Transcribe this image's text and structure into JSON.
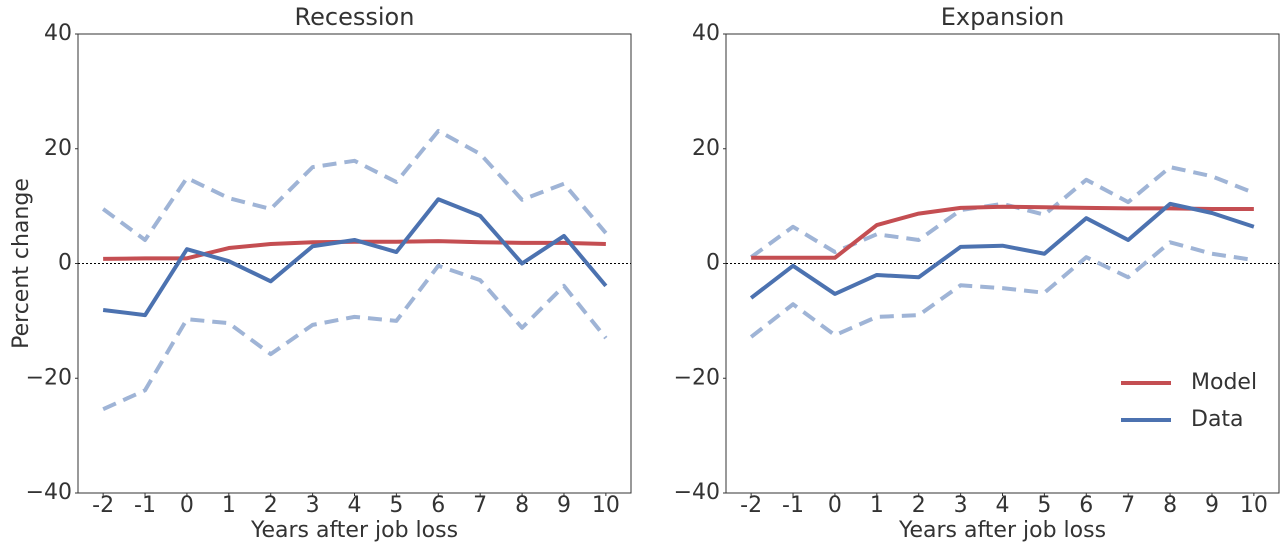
{
  "chart_data": [
    {
      "type": "line",
      "title": "Recession",
      "xlabel": "Years after job loss",
      "ylabel": "Percent change",
      "x": [
        -2,
        -1,
        0,
        1,
        2,
        3,
        4,
        5,
        6,
        7,
        8,
        9,
        10
      ],
      "xlim": [
        -2.6,
        10.6
      ],
      "xticks": [
        -2,
        -1,
        0,
        1,
        2,
        3,
        4,
        5,
        6,
        7,
        8,
        9,
        10
      ],
      "ylim": [
        -40,
        40
      ],
      "yticks": [
        {
          "value": -40,
          "label": "−40"
        },
        {
          "value": -20,
          "label": "−20"
        },
        0,
        20,
        40
      ],
      "zero_line": true,
      "series": [
        {
          "color": "#9fb4d6",
          "dashed": true,
          "values": [
            9.5,
            4.1,
            14.9,
            11.4,
            9.5,
            16.8,
            17.9,
            14.2,
            23.1,
            19.1,
            11.1,
            13.9,
            5.3
          ]
        },
        {
          "color": "#9fb4d6",
          "dashed": true,
          "values": [
            -25.4,
            -22.1,
            -9.7,
            -10.4,
            -15.8,
            -10.7,
            -9.3,
            -10,
            -0.4,
            -2.9,
            -11.2,
            -3.9,
            -13
          ]
        },
        {
          "color": "#c44e52",
          "values": [
            0.8,
            0.9,
            0.9,
            2.7,
            3.4,
            3.7,
            3.8,
            3.8,
            3.9,
            3.7,
            3.6,
            3.6,
            3.4
          ]
        },
        {
          "color": "#4c72b0",
          "values": [
            -8.1,
            -9,
            2.5,
            0.4,
            -3.1,
            3,
            4.1,
            2,
            11.2,
            8.3,
            0,
            4.8,
            -3.9
          ]
        }
      ]
    },
    {
      "type": "line",
      "title": "Expansion",
      "xlabel": "Years after job loss",
      "x": [
        -2,
        -1,
        0,
        1,
        2,
        3,
        4,
        5,
        6,
        7,
        8,
        9,
        10
      ],
      "xlim": [
        -2.6,
        10.6
      ],
      "xticks": [
        -2,
        -1,
        0,
        1,
        2,
        3,
        4,
        5,
        6,
        7,
        8,
        9,
        10
      ],
      "ylim": [
        -40,
        40
      ],
      "yticks": [
        {
          "value": -40,
          "label": "−40"
        },
        {
          "value": -20,
          "label": "−20"
        },
        0,
        20,
        40
      ],
      "zero_line": true,
      "legend": "lower right",
      "series": [
        {
          "color": "#9fb4d6",
          "dashed": true,
          "values": [
            1.1,
            6.4,
            2,
            5.1,
            4.1,
            9.3,
            10.4,
            8.5,
            14.6,
            10.7,
            16.8,
            15.2,
            12.3
          ]
        },
        {
          "color": "#9fb4d6",
          "dashed": true,
          "values": [
            -12.8,
            -7.1,
            -12.5,
            -9.3,
            -9,
            -3.8,
            -4.3,
            -5.1,
            1.1,
            -2.4,
            3.7,
            1.7,
            0.6
          ]
        },
        {
          "name": "Model",
          "color": "#c44e52",
          "values": [
            1,
            1,
            1,
            6.7,
            8.7,
            9.7,
            9.9,
            9.8,
            9.7,
            9.6,
            9.6,
            9.5,
            9.5
          ]
        },
        {
          "name": "Data",
          "color": "#4c72b0",
          "values": [
            -6,
            -0.4,
            -5.3,
            -2,
            -2.4,
            2.9,
            3.1,
            1.7,
            7.9,
            4.1,
            10.4,
            8.8,
            6.4
          ]
        }
      ]
    }
  ]
}
